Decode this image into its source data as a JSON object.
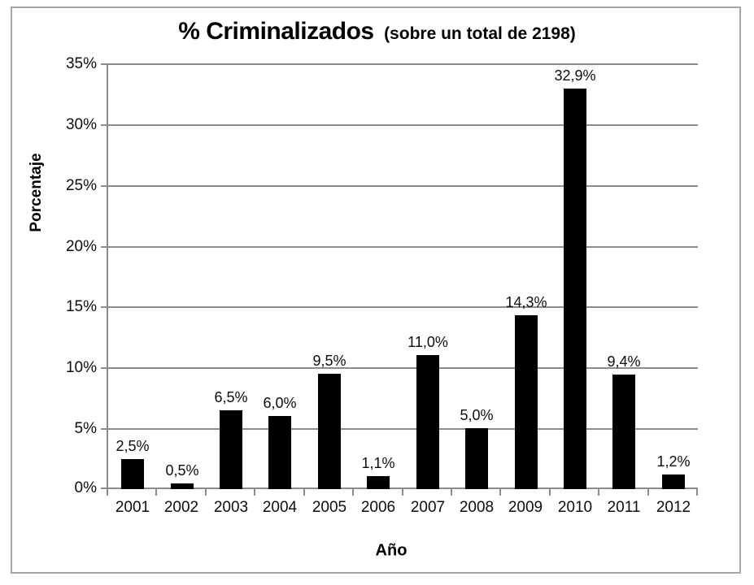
{
  "chart_data": {
    "type": "bar",
    "title": "% Criminalizados",
    "title_suffix": "(sobre un total de 2198)",
    "xlabel": "Año",
    "ylabel": "Porcentaje",
    "categories": [
      "2001",
      "2002",
      "2003",
      "2004",
      "2005",
      "2006",
      "2007",
      "2008",
      "2009",
      "2010",
      "2011",
      "2012"
    ],
    "values": [
      2.5,
      0.5,
      6.5,
      6.0,
      9.5,
      1.1,
      11.0,
      5.0,
      14.3,
      32.9,
      9.4,
      1.2
    ],
    "bar_value_labels": [
      "2,5%",
      "0,5%",
      "6,5%",
      "6,0%",
      "9,5%",
      "1,1%",
      "11,0%",
      "5,0%",
      "14,3%",
      "32,9%",
      "9,4%",
      "1,2%"
    ],
    "ylim": [
      0,
      35
    ],
    "ytick_step": 5,
    "ytick_labels_top_to_bottom": [
      "35%",
      "30%",
      "25%",
      "20%",
      "15%",
      "10%",
      "5%",
      "0%"
    ],
    "grid": true,
    "legend": "none",
    "bar_color": "#000000",
    "gridline_color": "#8c8c8c",
    "axis_color": "#8c8c8c",
    "frame_border_color": "#a6a6a6",
    "text_color": "#0d0d0d"
  }
}
